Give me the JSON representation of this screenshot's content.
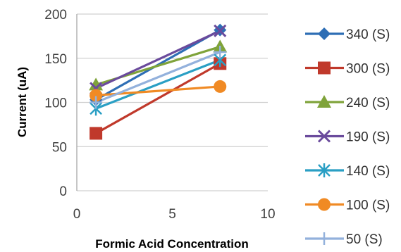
{
  "chart_data": {
    "type": "line",
    "title": "",
    "xlabel": "Formic Acid Concentration",
    "ylabel": "Current (uA)",
    "xlim": [
      0,
      10
    ],
    "ylim": [
      0,
      200
    ],
    "xticks": [
      "0",
      "5",
      "10"
    ],
    "yticks": [
      "0",
      "50",
      "100",
      "150",
      "200"
    ],
    "grid": "horizontal",
    "legend_position": "right",
    "x": [
      1,
      7.5
    ],
    "series": [
      {
        "name": "340 (S)",
        "values": [
          103,
          182
        ],
        "color": "#2E6EB5",
        "marker": "diamond"
      },
      {
        "name": "300 (S)",
        "values": [
          65,
          144
        ],
        "color": "#C0392B",
        "marker": "square"
      },
      {
        "name": "240 (S)",
        "values": [
          120,
          163
        ],
        "color": "#7FA33A",
        "marker": "triangle"
      },
      {
        "name": "190 (S)",
        "values": [
          116,
          181
        ],
        "color": "#6A4A9C",
        "marker": "x"
      },
      {
        "name": "140 (S)",
        "values": [
          93,
          148
        ],
        "color": "#2A9FC4",
        "marker": "asterisk"
      },
      {
        "name": "100 (S)",
        "values": [
          108,
          118
        ],
        "color": "#F08A24",
        "marker": "circle"
      },
      {
        "name": "50 (S)",
        "values": [
          100,
          157
        ],
        "color": "#93B1DC",
        "marker": "plus"
      }
    ]
  }
}
